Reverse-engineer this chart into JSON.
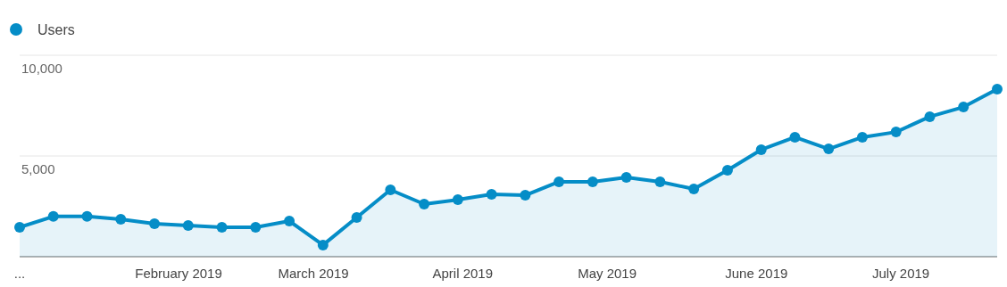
{
  "chart_data": {
    "type": "area",
    "x": [
      "2018-12-30",
      "2019-01-06",
      "2019-01-13",
      "2019-01-20",
      "2019-01-27",
      "2019-02-03",
      "2019-02-10",
      "2019-02-17",
      "2019-02-24",
      "2019-03-03",
      "2019-03-10",
      "2019-03-17",
      "2019-03-24",
      "2019-03-31",
      "2019-04-07",
      "2019-04-14",
      "2019-04-21",
      "2019-04-28",
      "2019-05-05",
      "2019-05-12",
      "2019-05-19",
      "2019-05-26",
      "2019-06-02",
      "2019-06-09",
      "2019-06-16",
      "2019-06-23",
      "2019-06-30",
      "2019-07-07",
      "2019-07-14",
      "2019-07-21"
    ],
    "series": [
      {
        "name": "Users",
        "color": "#058dc7",
        "values": [
          1460,
          2000,
          2000,
          1860,
          1640,
          1550,
          1460,
          1460,
          1770,
          580,
          1950,
          3320,
          2610,
          2830,
          3100,
          3050,
          3720,
          3720,
          3940,
          3720,
          3360,
          4290,
          5310,
          5930,
          5350,
          5930,
          6190,
          6950,
          7430,
          8320
        ]
      }
    ],
    "xlim": [
      "2018-12-30",
      "2019-07-21"
    ],
    "xticks": [
      {
        "value": "2018-12-30",
        "label": "..."
      },
      {
        "value": "2019-02-01",
        "label": "February 2019"
      },
      {
        "value": "2019-03-01",
        "label": "March 2019"
      },
      {
        "value": "2019-04-01",
        "label": "April 2019"
      },
      {
        "value": "2019-05-01",
        "label": "May 2019"
      },
      {
        "value": "2019-06-01",
        "label": "June 2019"
      },
      {
        "value": "2019-07-01",
        "label": "July 2019"
      }
    ],
    "ylim": [
      0,
      10000
    ],
    "yticks": [
      {
        "value": 0,
        "label": null
      },
      {
        "value": 5000,
        "label": "5,000"
      },
      {
        "value": 10000,
        "label": "10,000"
      }
    ],
    "grid": "y",
    "legend": "top left",
    "marker": "circle",
    "line_style": "solid"
  }
}
